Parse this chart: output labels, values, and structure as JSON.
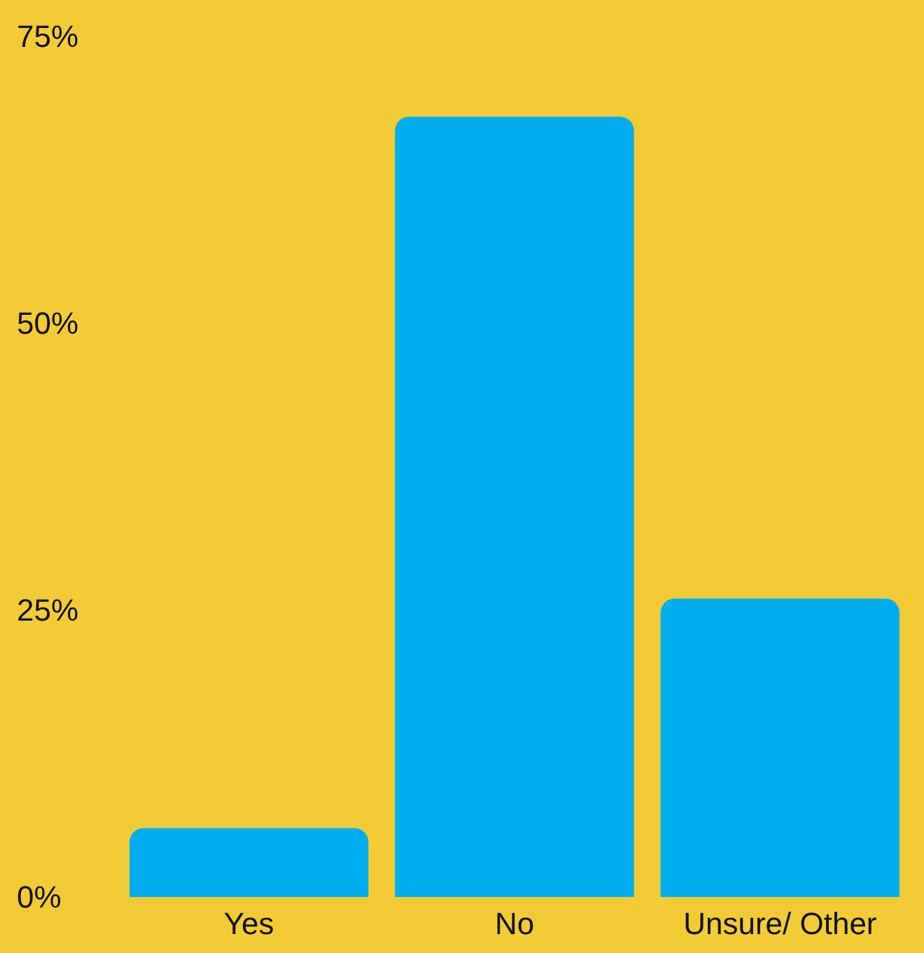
{
  "chart_data": {
    "type": "bar",
    "categories": [
      "Yes",
      "No",
      "Unsure/ Other"
    ],
    "values": [
      6,
      68,
      26
    ],
    "color": "#00aeef",
    "ylim": [
      0,
      75
    ],
    "yticks": [
      {
        "value": 0,
        "label": "0%"
      },
      {
        "value": 25,
        "label": "25%"
      },
      {
        "value": 50,
        "label": "50%"
      },
      {
        "value": 75,
        "label": "75%"
      }
    ],
    "grid": false
  }
}
